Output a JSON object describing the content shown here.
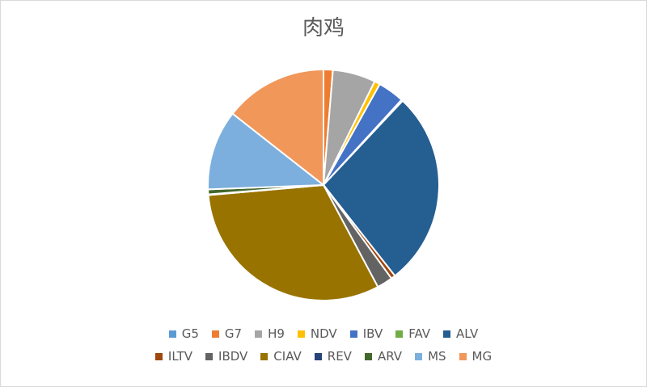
{
  "chart_data": {
    "type": "pie",
    "title": "肉鸡",
    "legend_position": "bottom",
    "series": [
      {
        "name": "G5",
        "value": 0.0,
        "color": "#5b9bd5"
      },
      {
        "name": "G7",
        "value": 1.3,
        "color": "#ed7d31"
      },
      {
        "name": "H9",
        "value": 6.0,
        "color": "#a5a5a5"
      },
      {
        "name": "NDV",
        "value": 0.8,
        "color": "#ffc000"
      },
      {
        "name": "IBV",
        "value": 3.7,
        "color": "#4472c4"
      },
      {
        "name": "FAV",
        "value": 0.2,
        "color": "#70ad47"
      },
      {
        "name": "ALV",
        "value": 27.4,
        "color": "#255e91"
      },
      {
        "name": "ILTV",
        "value": 0.6,
        "color": "#9e480e"
      },
      {
        "name": "IBDV",
        "value": 2.2,
        "color": "#636363"
      },
      {
        "name": "CIAV",
        "value": 31.4,
        "color": "#997300"
      },
      {
        "name": "REV",
        "value": 0.1,
        "color": "#264478"
      },
      {
        "name": "ARV",
        "value": 0.7,
        "color": "#43682b"
      },
      {
        "name": "MS",
        "value": 11.2,
        "color": "#7cafdd"
      },
      {
        "name": "MG",
        "value": 14.4,
        "color": "#f1975a"
      }
    ]
  }
}
